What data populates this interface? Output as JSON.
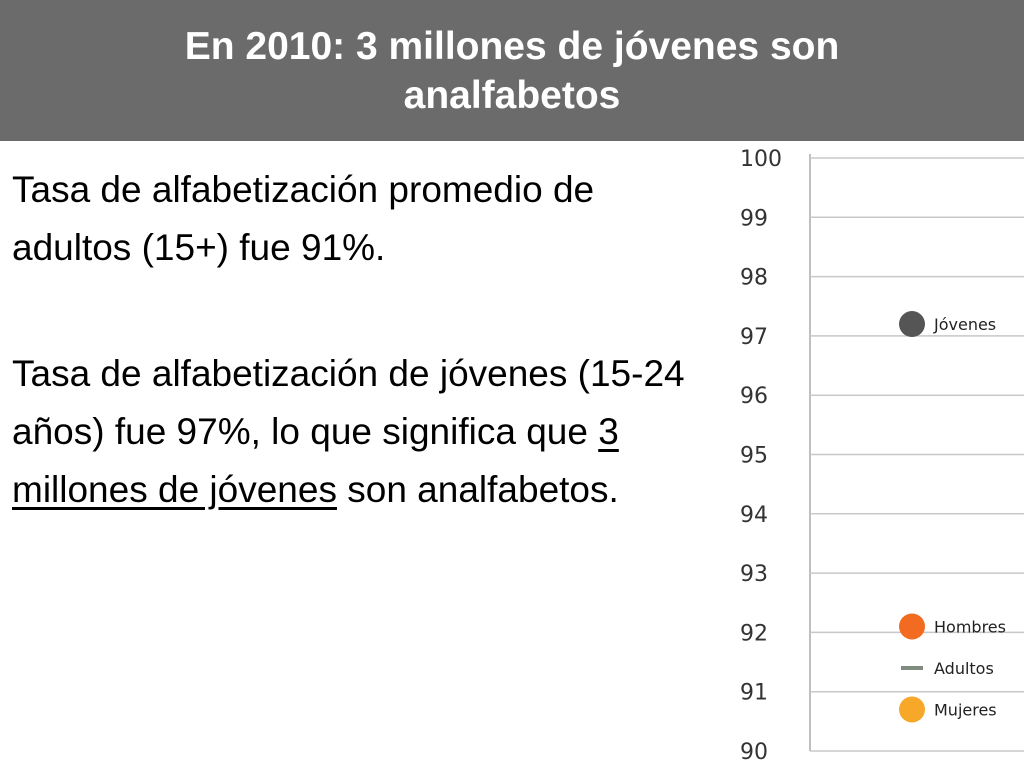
{
  "slide": {
    "title": "En 2010: 3 millones de jóvenes son analfabetos",
    "paragraph1": "Tasa de alfabetización promedio de adultos (15+) fue 91%.",
    "paragraph2_before": "Tasa de alfabetización de jóvenes (15-24 años) fue 97%, lo que significa que ",
    "paragraph2_underlined": "3 millones de jóvenes",
    "paragraph2_after": " son analfabetos."
  },
  "colors": {
    "header_bg": "#6b6b6b",
    "jovenes": "#555555",
    "hombres": "#f26b21",
    "adultos": "#7f8c7f",
    "mujeres": "#f7a829"
  },
  "chart_data": {
    "type": "scatter",
    "ylim": [
      90,
      100
    ],
    "y_ticks": [
      "100",
      "99",
      "98",
      "97",
      "96",
      "95",
      "94",
      "93",
      "92",
      "91",
      "90"
    ],
    "grid": true,
    "series": [
      {
        "name": "Jóvenes",
        "value": 97.2,
        "marker": "circle",
        "color": "#555555"
      },
      {
        "name": "Hombres",
        "value": 92.1,
        "marker": "circle",
        "color": "#f26b21"
      },
      {
        "name": "Adultos",
        "value": 91.4,
        "marker": "line",
        "color": "#7f8c7f"
      },
      {
        "name": "Mujeres",
        "value": 90.7,
        "marker": "circle",
        "color": "#f7a829"
      }
    ]
  }
}
